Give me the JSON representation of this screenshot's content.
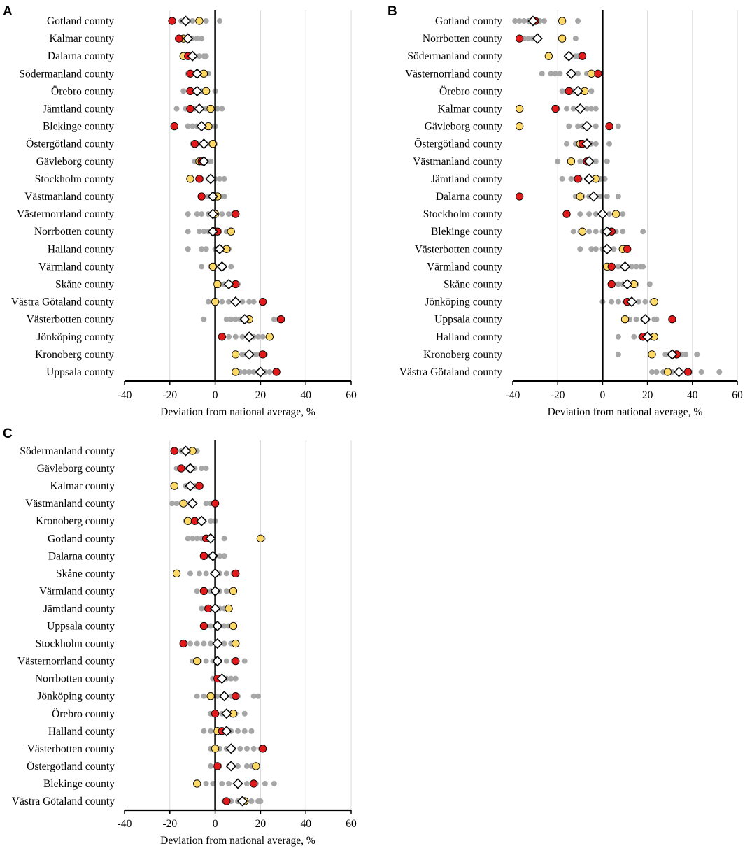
{
  "colors": {
    "gray": "#a6a6a6",
    "yellow": "#ffd966",
    "red": "#e31a1c",
    "diamond": "#ffffff",
    "grid": "#d9d9d9"
  },
  "chart_data": [
    {
      "panel": "A",
      "type": "scatter",
      "xlabel": "Deviation from national average, %",
      "xlim": [
        -40,
        60
      ],
      "xticks": [
        -40,
        -20,
        0,
        20,
        40,
        60
      ],
      "grid": true,
      "categories": [
        "Gotland county",
        "Kalmar county",
        "Dalarna county",
        "Södermanland county",
        "Örebro county",
        "Jämtland county",
        "Blekinge county",
        "Östergötland county",
        "Gävleborg county",
        "Stockholm county",
        "Västmanland county",
        "Västernorrland county",
        "Norrbotten county",
        "Halland county",
        "Värmland county",
        "Skåne county",
        "Västra Götaland county",
        "Västerbotten county",
        "Jönköping county",
        "Kronoberg county",
        "Uppsala county"
      ],
      "red": [
        -19,
        -16,
        -12,
        -11,
        -11,
        -11,
        -18,
        -9,
        -6,
        -7,
        -6,
        9,
        1,
        2,
        3,
        9,
        21,
        29,
        3,
        21,
        27
      ],
      "yellow": [
        -7,
        -14,
        -14,
        -5,
        -4,
        -2,
        -3,
        -1,
        -7,
        -11,
        1,
        0,
        7,
        5,
        -1,
        1,
        0,
        15,
        24,
        9,
        9
      ],
      "diamond": [
        -13,
        -12,
        -10,
        -8,
        -8,
        -7,
        -6,
        -5,
        -5,
        -2,
        -1,
        -1,
        -1,
        2,
        3,
        6,
        9,
        13,
        15,
        15,
        20
      ],
      "gray": [
        [
          -15,
          -12,
          -10,
          -4,
          2
        ],
        [
          -16,
          -14,
          -12,
          -10,
          -8,
          -6
        ],
        [
          -14,
          -11,
          -9,
          -7,
          -5,
          -4
        ],
        [
          -12,
          -10,
          -8,
          -6,
          -4,
          -3
        ],
        [
          -14,
          -11,
          -9,
          -6,
          -4,
          0
        ],
        [
          -17,
          -13,
          -9,
          -6,
          -4,
          1,
          3
        ],
        [
          -12,
          -10,
          -8,
          -6,
          -4,
          -2,
          0
        ],
        [
          -10,
          -8,
          -6,
          -4,
          -2,
          0
        ],
        [
          -9,
          -7,
          -5,
          -4,
          -2
        ],
        [
          -11,
          -6,
          -3,
          0,
          2,
          4
        ],
        [
          -6,
          -3,
          -1,
          1,
          3,
          4
        ],
        [
          -12,
          -8,
          -6,
          -3,
          0,
          3,
          6,
          8
        ],
        [
          -12,
          -7,
          -5,
          -3,
          0,
          2,
          5
        ],
        [
          -12,
          -6,
          -4,
          0,
          2,
          4,
          6
        ],
        [
          -6,
          -2,
          0,
          2,
          4,
          7
        ],
        [
          2,
          4,
          6,
          8,
          10
        ],
        [
          -3,
          3,
          6,
          9,
          12,
          15,
          17
        ],
        [
          -5,
          5,
          7,
          9,
          11,
          13,
          26,
          28
        ],
        [
          6,
          9,
          12,
          15,
          17,
          19,
          21
        ],
        [
          9,
          12,
          14,
          16,
          18,
          20,
          22
        ],
        [
          11,
          13,
          15,
          17,
          19,
          22,
          24
        ]
      ]
    },
    {
      "panel": "B",
      "type": "scatter",
      "xlabel": "Deviation from national average, %",
      "xlim": [
        -40,
        60
      ],
      "xticks": [
        -40,
        -20,
        0,
        20,
        40,
        60
      ],
      "grid": true,
      "categories": [
        "Gotland county",
        "Norrbotten county",
        "Södermanland county",
        "Västernorrland county",
        "Örebro county",
        "Kalmar county",
        "Gävleborg county",
        "Östergötland county",
        "Västmanland county",
        "Jämtland county",
        "Dalarna county",
        "Stockholm county",
        "Blekinge county",
        "Västerbotten county",
        "Värmland county",
        "Skåne county",
        "Jönköping county",
        "Uppsala county",
        "Halland county",
        "Kronoberg county",
        "Västra Götaland county"
      ],
      "red": [
        -30,
        -37,
        -9,
        -2,
        -15,
        -21,
        3,
        -9,
        -7,
        -11,
        -37,
        -16,
        4,
        11,
        4,
        4,
        11,
        31,
        18,
        33,
        38
      ],
      "yellow": [
        -18,
        -18,
        -24,
        -5,
        -8,
        -37,
        -37,
        -10,
        -14,
        -3,
        -10,
        6,
        -9,
        9,
        2,
        14,
        23,
        10,
        23,
        22,
        29
      ],
      "diamond": [
        -31,
        -29,
        -15,
        -14,
        -11,
        -10,
        -7,
        -7,
        -6,
        -6,
        -4,
        0,
        2,
        2,
        10,
        11,
        13,
        19,
        20,
        31,
        34
      ],
      "gray": [
        [
          -39,
          -37,
          -35,
          -33,
          -31,
          -28,
          -26,
          -11
        ],
        [
          -37,
          -35,
          -33,
          -31,
          -29,
          -12
        ],
        [
          -16,
          -14,
          -12,
          -11,
          -10
        ],
        [
          -27,
          -23,
          -21,
          -19,
          -13,
          -11,
          -7,
          -5
        ],
        [
          -18,
          -13,
          -11,
          -8,
          -5
        ],
        [
          -20,
          -16,
          -13,
          -10,
          -7,
          -5,
          -3
        ],
        [
          -15,
          -11,
          -9,
          -7,
          -3,
          7
        ],
        [
          -16,
          -12,
          -10,
          -8,
          -5,
          -3,
          3
        ],
        [
          -20,
          -10,
          -7,
          -5,
          -3,
          2
        ],
        [
          -18,
          -14,
          -10,
          -7,
          -3,
          -1,
          1
        ],
        [
          -12,
          -9,
          -6,
          -3,
          -1,
          2,
          7
        ],
        [
          -10,
          -6,
          -3,
          0,
          3,
          6,
          9
        ],
        [
          -13,
          -10,
          -6,
          -3,
          0,
          3,
          6,
          9,
          18
        ],
        [
          -10,
          -5,
          -3,
          0,
          2,
          5,
          9,
          11
        ],
        [
          7,
          9,
          11,
          13,
          15,
          17,
          18
        ],
        [
          7,
          9,
          11,
          13,
          15,
          21
        ],
        [
          0,
          4,
          7,
          10,
          13,
          16,
          19,
          22
        ],
        [
          12,
          15,
          18,
          20,
          23,
          24
        ],
        [
          7,
          14,
          17,
          19,
          21,
          23
        ],
        [
          7,
          28,
          30,
          32,
          35,
          37,
          42
        ],
        [
          22,
          24,
          27,
          31,
          35,
          39,
          44,
          52
        ]
      ]
    },
    {
      "panel": "C",
      "type": "scatter",
      "xlabel": "Deviation from national average, %",
      "xlim": [
        -40,
        60
      ],
      "xticks": [
        -40,
        -20,
        0,
        20,
        40,
        60
      ],
      "grid": true,
      "categories": [
        "Södermanland county",
        "Gävleborg county",
        "Kalmar county",
        "Västmanland county",
        "Kronoberg county",
        "Gotland county",
        "Dalarna county",
        "Skåne county",
        "Värmland county",
        "Jämtland county",
        "Uppsala county",
        "Stockholm county",
        "Västernorrland county",
        "Norrbotten county",
        "Jönköping county",
        "Örebro county",
        "Halland county",
        "Västerbotten county",
        "Östergötland county",
        "Blekinge county",
        "Västra Götaland county"
      ],
      "red": [
        -18,
        -15,
        -7,
        0,
        -9,
        -4,
        -5,
        9,
        -5,
        -3,
        -5,
        -14,
        9,
        1,
        9,
        0,
        3,
        21,
        1,
        17,
        5
      ],
      "yellow": [
        -10,
        -11,
        -18,
        -14,
        -12,
        20,
        -5,
        -17,
        8,
        6,
        8,
        9,
        -8,
        2,
        -2,
        8,
        1,
        0,
        18,
        -8,
        13
      ],
      "diamond": [
        -13,
        -11,
        -11,
        -10,
        -6,
        -2,
        -1,
        0,
        0,
        0,
        1,
        1,
        1,
        3,
        4,
        5,
        5,
        7,
        7,
        10,
        12
      ],
      "gray": [
        [
          -15,
          -12,
          -10,
          -8
        ],
        [
          -17,
          -14,
          -12,
          -9,
          -6,
          -4
        ],
        [
          -13,
          -11,
          -9,
          -7,
          -6
        ],
        [
          -19,
          -17,
          -15,
          -13,
          -11,
          -4,
          -2
        ],
        [
          -13,
          -10,
          -7,
          -5,
          -2,
          0
        ],
        [
          -12,
          -10,
          -8,
          -6,
          -2,
          4,
          21
        ],
        [
          -4,
          -2,
          0,
          2,
          4
        ],
        [
          -11,
          -7,
          -4,
          -1,
          2,
          5,
          8
        ],
        [
          -8,
          -5,
          -2,
          0,
          2,
          5
        ],
        [
          -6,
          -4,
          -2,
          0,
          2,
          4,
          6
        ],
        [
          -4,
          -2,
          0,
          2,
          4,
          6
        ],
        [
          -11,
          -8,
          -5,
          -2,
          1,
          4,
          7
        ],
        [
          -10,
          -7,
          -4,
          -1,
          2,
          5,
          8,
          13
        ],
        [
          -1,
          1,
          3,
          5,
          7,
          9
        ],
        [
          -8,
          -5,
          -2,
          1,
          4,
          7,
          10,
          17,
          19
        ],
        [
          -2,
          0,
          3,
          6,
          9,
          13
        ],
        [
          -5,
          -2,
          1,
          4,
          7,
          10,
          13,
          16
        ],
        [
          -2,
          2,
          5,
          8,
          11,
          14,
          17,
          20
        ],
        [
          -2,
          2,
          6,
          10,
          14,
          16
        ],
        [
          -4,
          -1,
          3,
          6,
          10,
          14,
          18,
          22,
          26
        ],
        [
          4,
          7,
          10,
          13,
          16,
          19,
          20
        ]
      ]
    }
  ]
}
